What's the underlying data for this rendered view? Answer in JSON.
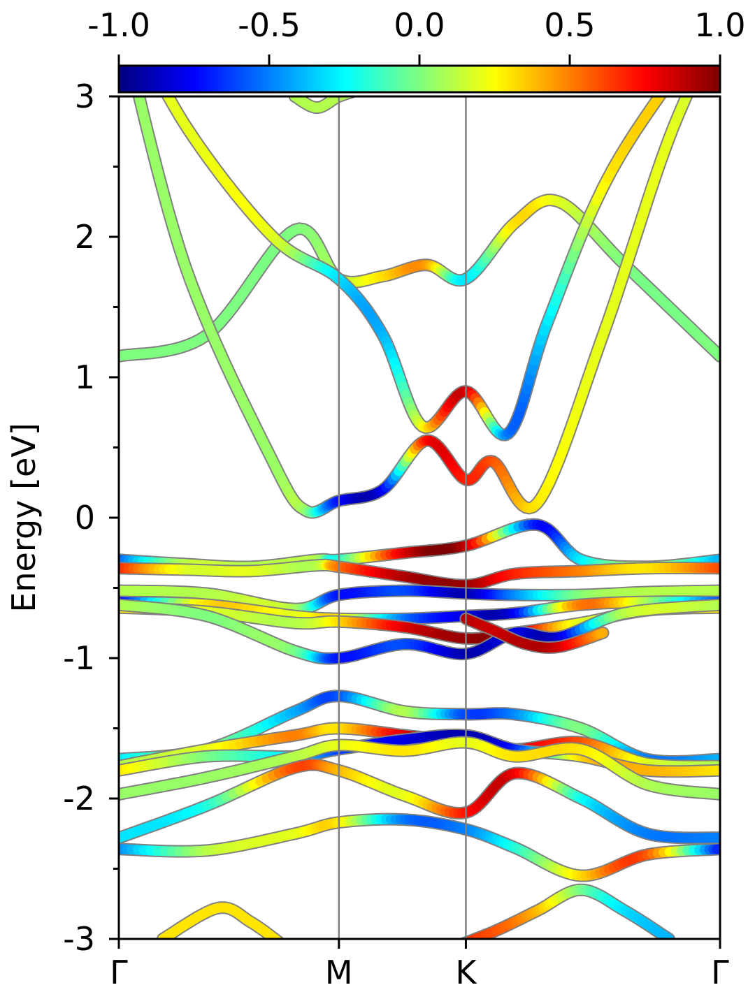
{
  "chart_data": {
    "type": "line",
    "subtype": "electronic band structure with projected weight",
    "ylabel": "Energy [eV]",
    "ylim": [
      -3,
      3
    ],
    "yticks": [
      "-3",
      "-2",
      "-1",
      "0",
      "1",
      "2",
      "3"
    ],
    "yticks_minor_values": [
      -2.5,
      -1.5,
      -0.5,
      0.5,
      1.5,
      2.5
    ],
    "xticks": [
      "Γ",
      "M",
      "K",
      "Γ"
    ],
    "k_path_positions": [
      0,
      1.0,
      1.577,
      2.732
    ],
    "high_symmetry_lines": [
      "M",
      "K"
    ],
    "colorbar": {
      "label": "",
      "range": [
        -1.0,
        1.0
      ],
      "ticks": [
        "-1.0",
        "-0.5",
        "0.0",
        "0.5",
        "1.0"
      ],
      "colormap": "jet",
      "stops": [
        "#00007f",
        "#0000ff",
        "#007fff",
        "#00ffff",
        "#7fff7f",
        "#ffff00",
        "#ff7f00",
        "#ff0000",
        "#7f0000"
      ]
    },
    "grid": false,
    "series": [
      {
        "x": [
          0,
          0.4,
          0.8,
          1.0,
          1.2,
          1.4,
          1.577,
          1.8,
          2.0,
          2.3,
          2.732
        ],
        "y": [
          1.15,
          1.3,
          2.05,
          1.7,
          1.72,
          1.8,
          1.7,
          2.1,
          2.25,
          1.8,
          1.15
        ],
        "w": [
          0,
          0,
          0,
          0.1,
          0.3,
          0.45,
          -0.3,
          0.3,
          0.2,
          0,
          0
        ]
      },
      {
        "x": [
          0,
          0.3,
          0.7,
          0.85,
          1.0,
          1.2,
          1.4,
          1.577,
          1.7,
          1.9,
          2.2,
          2.5,
          2.732
        ],
        "y": [
          3.6,
          1.8,
          0.4,
          0.05,
          0.12,
          0.2,
          0.55,
          0.27,
          0.4,
          0.1,
          1.3,
          2.7,
          3.5
        ],
        "w": [
          0.05,
          0.05,
          0.05,
          0.05,
          -0.7,
          -0.8,
          0.7,
          0.7,
          0.6,
          0.3,
          0.2,
          0.2,
          0.1
        ]
      },
      {
        "x": [
          0,
          0.3,
          0.7,
          1.0,
          1.2,
          1.38,
          1.577,
          1.77,
          1.95,
          2.25,
          2.732
        ],
        "y": [
          3.7,
          2.8,
          2.0,
          1.7,
          1.3,
          0.65,
          0.9,
          0.6,
          1.4,
          2.5,
          3.6
        ],
        "w": [
          0.2,
          0.2,
          0.2,
          -0.3,
          -0.4,
          0.2,
          0.85,
          -0.5,
          -0.3,
          0.3,
          0.3
        ]
      },
      {
        "x": [
          0.8,
          0.9,
          1.0,
          1.1
        ],
        "y": [
          3.0,
          2.92,
          3.0,
          3.05
        ],
        "w": [
          0.1,
          0.1,
          0.1,
          0.1
        ]
      },
      {
        "x": [
          0,
          0.3,
          0.6,
          0.9,
          1.0,
          1.3,
          1.577,
          1.9,
          2.1,
          2.4,
          2.732
        ],
        "y": [
          -0.3,
          -0.33,
          -0.35,
          -0.3,
          -0.3,
          -0.25,
          -0.2,
          -0.05,
          -0.3,
          -0.35,
          -0.3
        ],
        "w": [
          -0.6,
          0.1,
          0.1,
          0.1,
          -0.2,
          0.8,
          0.9,
          -0.7,
          -0.3,
          0.1,
          -0.4
        ]
      },
      {
        "x": [
          0,
          0.3,
          0.6,
          0.9,
          1.0,
          1.3,
          1.577,
          1.8,
          2.1,
          2.4,
          2.732
        ],
        "y": [
          -0.36,
          -0.37,
          -0.38,
          -0.34,
          -0.35,
          -0.42,
          -0.48,
          -0.4,
          -0.38,
          -0.36,
          -0.36
        ],
        "w": [
          0.7,
          0.2,
          0.2,
          0.1,
          0.5,
          0.9,
          0.95,
          0.7,
          0.5,
          0.3,
          0.6
        ]
      },
      {
        "x": [
          0,
          0.4,
          0.8,
          1.0,
          1.3,
          1.577,
          1.8,
          2.1,
          2.4,
          2.732
        ],
        "y": [
          -0.52,
          -0.54,
          -0.65,
          -0.55,
          -0.52,
          -0.54,
          -0.55,
          -0.55,
          -0.53,
          -0.52
        ],
        "w": [
          0.1,
          0.1,
          0.1,
          -0.7,
          -0.6,
          -0.9,
          -0.5,
          0.0,
          0.1,
          0.1
        ]
      },
      {
        "x": [
          0,
          0.4,
          0.8,
          1.0,
          1.3,
          1.577,
          1.8,
          2.1,
          2.4,
          2.732
        ],
        "y": [
          -0.6,
          -0.62,
          -0.7,
          -0.72,
          -0.72,
          -0.7,
          -0.68,
          -0.62,
          -0.6,
          -0.6
        ],
        "w": [
          -0.8,
          0.3,
          0.2,
          0.3,
          -0.5,
          -0.8,
          -0.8,
          0.5,
          0.1,
          -0.6
        ]
      },
      {
        "x": [
          0,
          0.4,
          0.8,
          1.0,
          1.3,
          1.577,
          1.8,
          2.1,
          2.4,
          2.732
        ],
        "y": [
          -0.64,
          -0.67,
          -0.75,
          -0.74,
          -0.78,
          -0.86,
          -0.82,
          -0.75,
          -0.66,
          -0.64
        ],
        "w": [
          0.3,
          0.2,
          0.1,
          0.3,
          0.8,
          0.95,
          0.9,
          0.2,
          0.3,
          0.3
        ]
      },
      {
        "x": [
          0,
          0.4,
          0.8,
          1.0,
          1.3,
          1.577,
          1.8,
          2.0,
          2.3,
          2.732
        ],
        "y": [
          -0.62,
          -0.7,
          -0.95,
          -1.0,
          -0.9,
          -0.97,
          -0.82,
          -0.85,
          -0.68,
          -0.62
        ],
        "w": [
          0.1,
          0.0,
          0.0,
          -0.7,
          -0.6,
          -0.9,
          -0.8,
          -0.85,
          0.1,
          0.1
        ]
      },
      {
        "x": [
          1.577,
          1.7,
          1.85,
          2.0,
          2.2
        ],
        "y": [
          -0.72,
          -0.8,
          -0.9,
          -0.92,
          -0.82
        ],
        "w": [
          0.9,
          0.85,
          0.9,
          0.85,
          0.4
        ]
      },
      {
        "x": [
          0,
          0.4,
          0.8,
          1.0,
          1.3,
          1.577,
          1.8,
          2.1,
          2.4,
          2.732
        ],
        "y": [
          -1.72,
          -1.65,
          -1.38,
          -1.27,
          -1.38,
          -1.4,
          -1.4,
          -1.5,
          -1.72,
          -1.72
        ],
        "w": [
          -0.3,
          0.0,
          -0.4,
          -0.6,
          0.1,
          -0.6,
          -0.5,
          0.0,
          -0.5,
          -0.4
        ]
      },
      {
        "x": [
          0,
          0.4,
          0.8,
          1.0,
          1.3,
          1.577,
          1.8,
          2.1,
          2.4,
          2.732
        ],
        "y": [
          -1.77,
          -1.65,
          -1.55,
          -1.5,
          -1.55,
          -1.6,
          -1.65,
          -1.6,
          -1.75,
          -1.77
        ],
        "w": [
          0.1,
          0.2,
          0.5,
          0.3,
          0.8,
          0.9,
          0.8,
          0.6,
          0.2,
          0.1
        ]
      },
      {
        "x": [
          0,
          0.4,
          0.8,
          1.0,
          1.3,
          1.577,
          1.8,
          2.1,
          2.4,
          2.732
        ],
        "y": [
          -1.8,
          -1.7,
          -1.7,
          -1.65,
          -1.58,
          -1.55,
          -1.65,
          -1.7,
          -1.8,
          -1.8
        ],
        "w": [
          0.3,
          0.0,
          -0.3,
          -0.6,
          -0.8,
          -0.9,
          -0.7,
          0.3,
          0.4,
          0.3
        ]
      },
      {
        "x": [
          0,
          0.4,
          0.8,
          1.0,
          1.3,
          1.577,
          1.8,
          2.1,
          2.4,
          2.732
        ],
        "y": [
          -1.97,
          -1.85,
          -1.7,
          -1.62,
          -1.66,
          -1.6,
          -1.7,
          -1.65,
          -1.9,
          -1.97
        ],
        "w": [
          0.05,
          0.05,
          0.1,
          0.2,
          0.3,
          0.2,
          0.3,
          0.3,
          0.1,
          0.05
        ]
      },
      {
        "x": [
          0,
          0.4,
          0.8,
          1.0,
          1.3,
          1.577,
          1.8,
          2.1,
          2.4,
          2.732
        ],
        "y": [
          -2.28,
          -2.05,
          -1.78,
          -1.8,
          -1.98,
          -2.1,
          -1.82,
          -2.0,
          -2.25,
          -2.28
        ],
        "w": [
          -0.3,
          -0.2,
          0.6,
          0.4,
          0.2,
          0.7,
          0.8,
          -0.2,
          -0.5,
          -0.5
        ]
      },
      {
        "x": [
          0,
          0.4,
          0.8,
          1.0,
          1.3,
          1.577,
          1.8,
          2.1,
          2.4,
          2.732
        ],
        "y": [
          -2.36,
          -2.37,
          -2.25,
          -2.17,
          -2.15,
          -2.22,
          -2.35,
          -2.55,
          -2.4,
          -2.36
        ],
        "w": [
          -0.5,
          0.1,
          0.2,
          0.3,
          -0.5,
          -0.5,
          -0.2,
          0.3,
          0.6,
          -0.7
        ]
      },
      {
        "x": [
          0.2,
          0.45,
          0.6,
          0.75
        ],
        "y": [
          -3.0,
          -2.78,
          -2.88,
          -3.05
        ],
        "w": [
          0.3,
          0.3,
          0.3,
          0.3
        ]
      },
      {
        "x": [
          1.45,
          1.7,
          1.9,
          2.1,
          2.3,
          2.5
        ],
        "y": [
          -3.1,
          -2.95,
          -2.8,
          -2.65,
          -2.8,
          -3.0
        ],
        "w": [
          0.7,
          0.6,
          0.4,
          0.0,
          -0.3,
          -0.4
        ]
      }
    ]
  }
}
